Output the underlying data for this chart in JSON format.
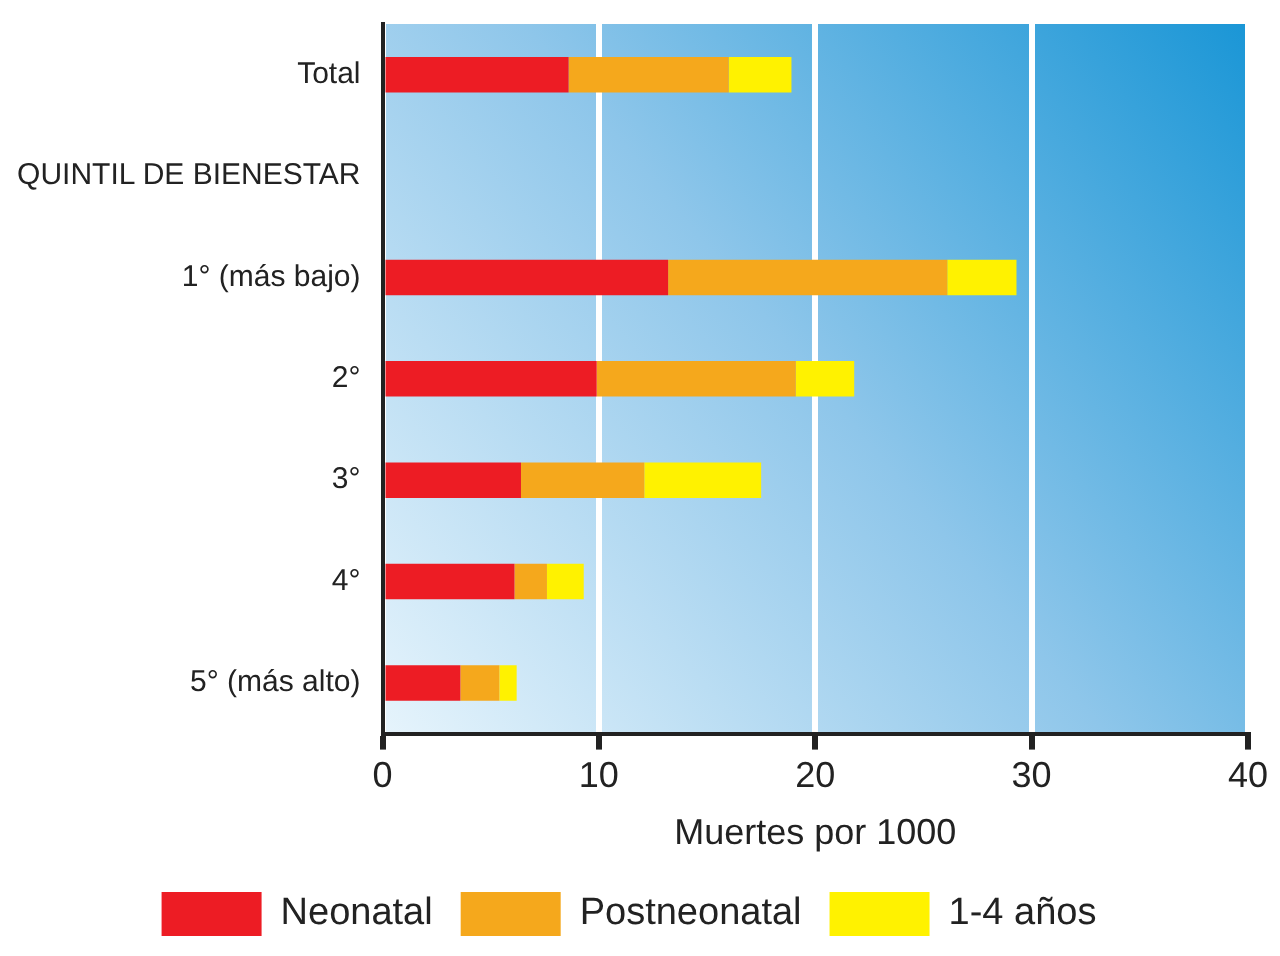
{
  "chart_data": {
    "type": "bar",
    "orientation": "horizontal",
    "stacked": true,
    "categories": [
      "Total",
      "QUINTIL DE BIENESTAR",
      "1° (más bajo)",
      "2°",
      "3°",
      "4°",
      "5° (más alto)"
    ],
    "series": [
      {
        "name": "Neonatal",
        "color": "#ed1c24",
        "values": [
          8.6,
          null,
          13.2,
          9.9,
          6.4,
          6.1,
          3.6
        ]
      },
      {
        "name": "Postneonatal",
        "color": "#f5a81c",
        "values": [
          7.4,
          null,
          12.9,
          9.2,
          5.7,
          1.5,
          1.8
        ]
      },
      {
        "name": "1-4 años",
        "color": "#fff200",
        "values": [
          2.9,
          null,
          3.2,
          2.7,
          5.4,
          1.7,
          0.8
        ]
      }
    ],
    "xlabel": "Muertes por 1000",
    "xlim": [
      0,
      40
    ],
    "xticks": [
      0,
      10,
      20,
      30,
      40
    ],
    "grid": "x",
    "legend": "bottom"
  }
}
